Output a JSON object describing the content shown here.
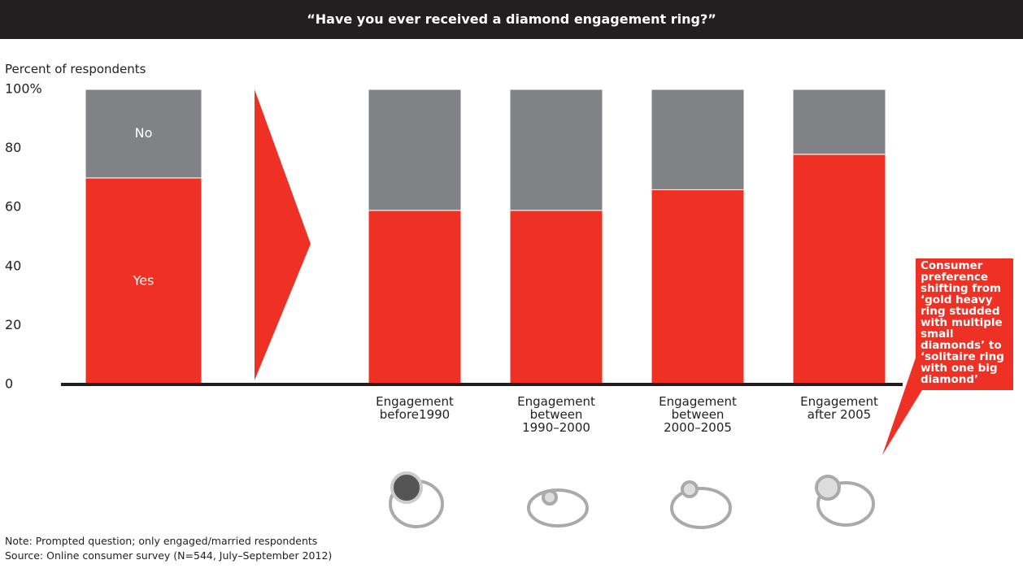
{
  "chart_data": {
    "type": "stacked_bar",
    "title": "“Have you ever received a diamond engagement ring?”",
    "y_axis_label": "Percent of respondents",
    "categories": [
      null,
      "Engagement\nbefore1990",
      "Engagement\nbetween\n1990–2000",
      "Engagement\nbetween\n2000–2005",
      "Engagement\nafter 2005"
    ],
    "series": [
      {
        "name": "Yes",
        "color": "#ee3124",
        "values": [
          70,
          59,
          59,
          66,
          78
        ]
      },
      {
        "name": "No",
        "color": "#808285",
        "values": [
          30,
          41,
          41,
          34,
          22
        ]
      }
    ],
    "ylim": [
      0,
      100
    ],
    "yticks": [
      0,
      20,
      40,
      60,
      80,
      {
        "value": 100,
        "label": "100%"
      }
    ],
    "annotation": "Consumer preference shifting from ‘gold heavy ring studded with multiple small diamonds’ to ‘solitaire ring with one big diamond’",
    "notes": [
      "Note: Prompted question; only engaged/married respondents",
      "Source: Online consumer survey (N=544, July–September 2012)"
    ]
  }
}
